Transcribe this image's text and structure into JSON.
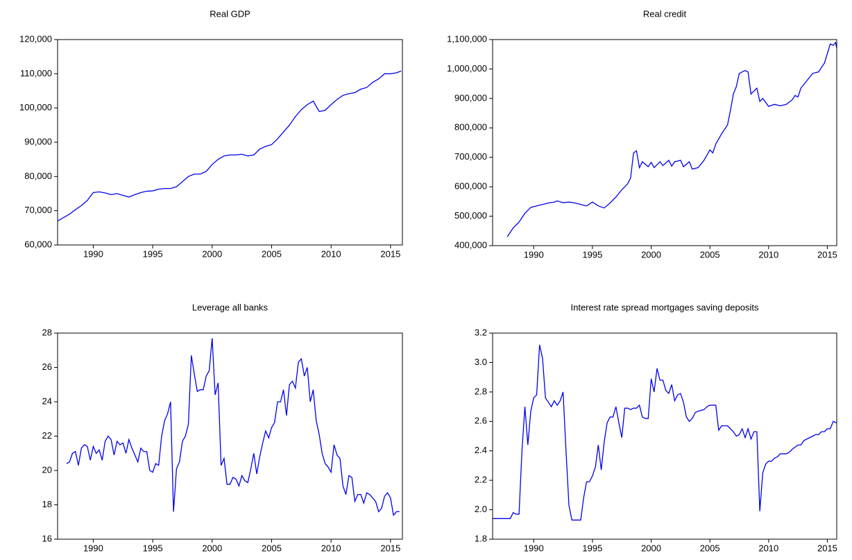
{
  "chart_data": [
    {
      "type": "line",
      "title": "Real GDP",
      "color": "#0000ee",
      "xlim": [
        1987,
        2016
      ],
      "xticks": [
        1990,
        1995,
        2000,
        2005,
        2010,
        2015
      ],
      "ylim": [
        60000,
        120000
      ],
      "yticks": [
        {
          "value": 60000,
          "label": "60,000"
        },
        {
          "value": 70000,
          "label": "70,000"
        },
        {
          "value": 80000,
          "label": "80,000"
        },
        {
          "value": 90000,
          "label": "90,000"
        },
        {
          "value": 100000,
          "label": "100,000"
        },
        {
          "value": 110000,
          "label": "110,000"
        },
        {
          "value": 120000,
          "label": "120,000"
        }
      ],
      "x": [
        1987.0,
        1987.5,
        1988.0,
        1988.5,
        1989.0,
        1989.5,
        1990.0,
        1990.5,
        1991.0,
        1991.5,
        1992.0,
        1992.5,
        1993.0,
        1993.5,
        1994.0,
        1994.5,
        1995.0,
        1995.5,
        1996.0,
        1996.5,
        1997.0,
        1997.5,
        1998.0,
        1998.5,
        1999.0,
        1999.5,
        2000.0,
        2000.5,
        2001.0,
        2001.5,
        2002.0,
        2002.5,
        2003.0,
        2003.5,
        2004.0,
        2004.5,
        2005.0,
        2005.5,
        2006.0,
        2006.5,
        2007.0,
        2007.5,
        2008.0,
        2008.5,
        2009.0,
        2009.5,
        2010.0,
        2010.5,
        2011.0,
        2011.5,
        2012.0,
        2012.5,
        2013.0,
        2013.5,
        2014.0,
        2014.5,
        2015.0,
        2015.5,
        2015.9
      ],
      "values": [
        67000,
        68000,
        69000,
        70300,
        71500,
        73000,
        75300,
        75500,
        75200,
        74700,
        75000,
        74500,
        74000,
        74700,
        75300,
        75700,
        75800,
        76300,
        76500,
        76500,
        77000,
        78500,
        80000,
        80700,
        80700,
        81500,
        83500,
        85000,
        86000,
        86300,
        86300,
        86500,
        86000,
        86300,
        88000,
        88800,
        89300,
        91000,
        93000,
        95000,
        97500,
        99500,
        101000,
        102000,
        99000,
        99300,
        101000,
        102500,
        103700,
        104200,
        104500,
        105500,
        106000,
        107500,
        108500,
        110000,
        110000,
        110300,
        110800
      ]
    },
    {
      "type": "line",
      "title": "Real  credit",
      "color": "#0000ee",
      "xlim": [
        1986.5,
        2015.8
      ],
      "xticks": [
        1990,
        1995,
        2000,
        2005,
        2010,
        2015
      ],
      "ylim": [
        400000,
        1100000
      ],
      "yticks": [
        {
          "value": 400000,
          "label": "400,000"
        },
        {
          "value": 500000,
          "label": "500,000"
        },
        {
          "value": 600000,
          "label": "600,000"
        },
        {
          "value": 700000,
          "label": "700,000"
        },
        {
          "value": 800000,
          "label": "800,000"
        },
        {
          "value": 900000,
          "label": "900,000"
        },
        {
          "value": 1000000,
          "label": "1,000,000"
        },
        {
          "value": 1100000,
          "label": "1,100,000"
        }
      ],
      "x": [
        1987.75,
        1988.25,
        1988.75,
        1989.25,
        1989.75,
        1990.25,
        1990.75,
        1991.25,
        1991.75,
        1992.0,
        1992.5,
        1993.0,
        1993.5,
        1994.0,
        1994.5,
        1995.0,
        1995.5,
        1996.0,
        1996.5,
        1997.0,
        1997.5,
        1998.0,
        1998.25,
        1998.5,
        1998.75,
        1999.0,
        1999.25,
        1999.75,
        2000.0,
        2000.25,
        2000.75,
        2001.0,
        2001.5,
        2001.75,
        2002.0,
        2002.5,
        2002.75,
        2003.25,
        2003.5,
        2004.0,
        2004.5,
        2005.0,
        2005.25,
        2005.5,
        2006.0,
        2006.5,
        2006.75,
        2007.0,
        2007.25,
        2007.5,
        2008.0,
        2008.25,
        2008.5,
        2009.0,
        2009.25,
        2009.5,
        2010.0,
        2010.5,
        2011.0,
        2011.5,
        2012.0,
        2012.25,
        2012.5,
        2012.75,
        2013.25,
        2013.75,
        2014.25,
        2014.75,
        2015.25,
        2015.5,
        2015.7,
        2015.8
      ],
      "values": [
        430000,
        460000,
        480000,
        510000,
        530000,
        535000,
        540000,
        545000,
        548000,
        552000,
        546000,
        548000,
        545000,
        540000,
        535000,
        548000,
        535000,
        528000,
        545000,
        565000,
        590000,
        610000,
        630000,
        715000,
        722000,
        665000,
        685000,
        668000,
        683000,
        665000,
        685000,
        672000,
        690000,
        670000,
        685000,
        690000,
        668000,
        685000,
        660000,
        665000,
        690000,
        725000,
        715000,
        745000,
        780000,
        810000,
        860000,
        915000,
        940000,
        985000,
        995000,
        990000,
        915000,
        935000,
        890000,
        900000,
        873000,
        880000,
        875000,
        880000,
        895000,
        910000,
        905000,
        935000,
        960000,
        985000,
        990000,
        1020000,
        1085000,
        1080000,
        1090000,
        1070000
      ]
    },
    {
      "type": "line",
      "title": "Leverage all banks",
      "color": "#0000ee",
      "xlim": [
        1987,
        2016
      ],
      "xticks": [
        1990,
        1995,
        2000,
        2005,
        2010,
        2015
      ],
      "ylim": [
        16,
        28
      ],
      "yticks": [
        16,
        18,
        20,
        22,
        24,
        26,
        28
      ],
      "x": [
        1987.75,
        1988.0,
        1988.25,
        1988.5,
        1988.75,
        1989.0,
        1989.25,
        1989.5,
        1989.75,
        1990.0,
        1990.25,
        1990.5,
        1990.75,
        1991.0,
        1991.25,
        1991.5,
        1991.75,
        1992.0,
        1992.25,
        1992.5,
        1992.75,
        1993.0,
        1993.25,
        1993.5,
        1993.75,
        1994.0,
        1994.25,
        1994.5,
        1994.75,
        1995.0,
        1995.25,
        1995.5,
        1995.75,
        1996.0,
        1996.25,
        1996.5,
        1996.75,
        1997.0,
        1997.25,
        1997.5,
        1997.75,
        1998.0,
        1998.25,
        1998.5,
        1998.75,
        1999.0,
        1999.25,
        1999.5,
        1999.75,
        2000.0,
        2000.25,
        2000.5,
        2000.75,
        2001.0,
        2001.25,
        2001.5,
        2001.75,
        2002.0,
        2002.25,
        2002.5,
        2002.75,
        2003.0,
        2003.25,
        2003.5,
        2003.75,
        2004.0,
        2004.25,
        2004.5,
        2004.75,
        2005.0,
        2005.25,
        2005.5,
        2005.75,
        2006.0,
        2006.25,
        2006.5,
        2006.75,
        2007.0,
        2007.25,
        2007.5,
        2007.75,
        2008.0,
        2008.25,
        2008.5,
        2008.75,
        2009.0,
        2009.25,
        2009.5,
        2009.75,
        2010.0,
        2010.25,
        2010.5,
        2010.75,
        2011.0,
        2011.25,
        2011.5,
        2011.75,
        2012.0,
        2012.25,
        2012.5,
        2012.75,
        2013.0,
        2013.25,
        2013.5,
        2013.75,
        2014.0,
        2014.25,
        2014.5,
        2014.75,
        2015.0,
        2015.25,
        2015.5,
        2015.75
      ],
      "values": [
        20.4,
        20.5,
        21.0,
        21.1,
        20.3,
        21.3,
        21.5,
        21.4,
        20.6,
        21.4,
        21.0,
        21.2,
        20.6,
        21.7,
        22.0,
        21.8,
        20.9,
        21.7,
        21.5,
        21.6,
        21.0,
        21.8,
        21.3,
        20.9,
        20.5,
        21.3,
        21.1,
        21.1,
        20.0,
        19.9,
        20.4,
        20.3,
        22.0,
        22.9,
        23.3,
        24.0,
        17.6,
        20.1,
        20.5,
        21.7,
        22.0,
        22.7,
        26.7,
        25.6,
        24.6,
        24.7,
        24.7,
        25.5,
        25.8,
        27.7,
        24.4,
        25.1,
        20.3,
        20.7,
        19.2,
        19.2,
        19.6,
        19.5,
        19.1,
        19.7,
        19.4,
        19.3,
        20.1,
        21.0,
        19.8,
        20.8,
        21.6,
        22.3,
        21.9,
        22.5,
        22.8,
        24.0,
        24.0,
        24.7,
        23.2,
        25.0,
        25.2,
        24.8,
        26.3,
        26.5,
        25.5,
        26.0,
        24.0,
        24.7,
        22.9,
        22.1,
        21.0,
        20.4,
        20.2,
        19.9,
        21.5,
        20.9,
        20.7,
        19.1,
        18.6,
        19.7,
        19.6,
        18.2,
        18.6,
        18.6,
        18.1,
        18.7,
        18.6,
        18.4,
        18.2,
        17.6,
        17.8,
        18.5,
        18.7,
        18.4,
        17.4,
        17.6,
        17.6
      ]
    },
    {
      "type": "line",
      "title": "Interest rate spread mortgages saving deposits",
      "color": "#0000ee",
      "xlim": [
        1986.5,
        2015.8
      ],
      "xticks": [
        1990,
        1995,
        2000,
        2005,
        2010,
        2015
      ],
      "ylim": [
        1.8,
        3.2
      ],
      "yticks": [
        {
          "value": 1.8,
          "label": "1.8"
        },
        {
          "value": 2.0,
          "label": "2.0"
        },
        {
          "value": 2.2,
          "label": "2.2"
        },
        {
          "value": 2.4,
          "label": "2.4"
        },
        {
          "value": 2.6,
          "label": "2.6"
        },
        {
          "value": 2.8,
          "label": "2.8"
        },
        {
          "value": 3.0,
          "label": "3.0"
        },
        {
          "value": 3.2,
          "label": "3.2"
        }
      ],
      "x": [
        1986.5,
        1988.0,
        1988.25,
        1988.5,
        1988.75,
        1989.0,
        1989.25,
        1989.5,
        1989.75,
        1990.0,
        1990.25,
        1990.5,
        1990.75,
        1991.0,
        1991.5,
        1991.75,
        1992.0,
        1992.25,
        1992.5,
        1992.75,
        1993.0,
        1993.25,
        1993.5,
        1994.0,
        1994.25,
        1994.5,
        1994.75,
        1995.0,
        1995.25,
        1995.5,
        1995.75,
        1996.0,
        1996.25,
        1996.5,
        1996.75,
        1997.0,
        1997.25,
        1997.5,
        1997.75,
        1998.0,
        1998.25,
        1998.5,
        1998.75,
        1999.0,
        1999.25,
        1999.5,
        1999.75,
        2000.0,
        2000.25,
        2000.5,
        2000.75,
        2001.0,
        2001.25,
        2001.5,
        2001.75,
        2002.0,
        2002.25,
        2002.5,
        2002.75,
        2003.0,
        2003.25,
        2003.5,
        2003.75,
        2004.0,
        2004.5,
        2004.75,
        2005.0,
        2005.5,
        2005.75,
        2006.0,
        2006.5,
        2006.75,
        2007.0,
        2007.25,
        2007.5,
        2007.75,
        2008.0,
        2008.25,
        2008.5,
        2008.75,
        2009.0,
        2009.25,
        2009.5,
        2009.75,
        2010.0,
        2010.25,
        2010.5,
        2010.75,
        2011.0,
        2011.5,
        2011.75,
        2012.0,
        2012.5,
        2012.75,
        2013.0,
        2013.5,
        2013.75,
        2014.0,
        2014.25,
        2014.5,
        2014.75,
        2015.0,
        2015.25,
        2015.5,
        2015.8
      ],
      "values": [
        1.94,
        1.94,
        1.98,
        1.97,
        1.97,
        2.4,
        2.7,
        2.44,
        2.67,
        2.76,
        2.78,
        3.12,
        3.03,
        2.76,
        2.7,
        2.74,
        2.71,
        2.74,
        2.8,
        2.4,
        2.03,
        1.93,
        1.93,
        1.93,
        2.08,
        2.19,
        2.19,
        2.23,
        2.29,
        2.44,
        2.27,
        2.46,
        2.59,
        2.63,
        2.63,
        2.7,
        2.59,
        2.49,
        2.69,
        2.69,
        2.68,
        2.69,
        2.69,
        2.71,
        2.63,
        2.62,
        2.62,
        2.89,
        2.8,
        2.96,
        2.88,
        2.88,
        2.81,
        2.79,
        2.85,
        2.74,
        2.78,
        2.79,
        2.73,
        2.63,
        2.6,
        2.62,
        2.66,
        2.67,
        2.68,
        2.7,
        2.71,
        2.71,
        2.54,
        2.57,
        2.57,
        2.55,
        2.53,
        2.5,
        2.51,
        2.55,
        2.49,
        2.55,
        2.48,
        2.53,
        2.53,
        1.99,
        2.25,
        2.31,
        2.33,
        2.33,
        2.35,
        2.36,
        2.38,
        2.38,
        2.39,
        2.41,
        2.44,
        2.44,
        2.47,
        2.49,
        2.5,
        2.51,
        2.51,
        2.53,
        2.53,
        2.55,
        2.55,
        2.6,
        2.59
      ]
    }
  ]
}
